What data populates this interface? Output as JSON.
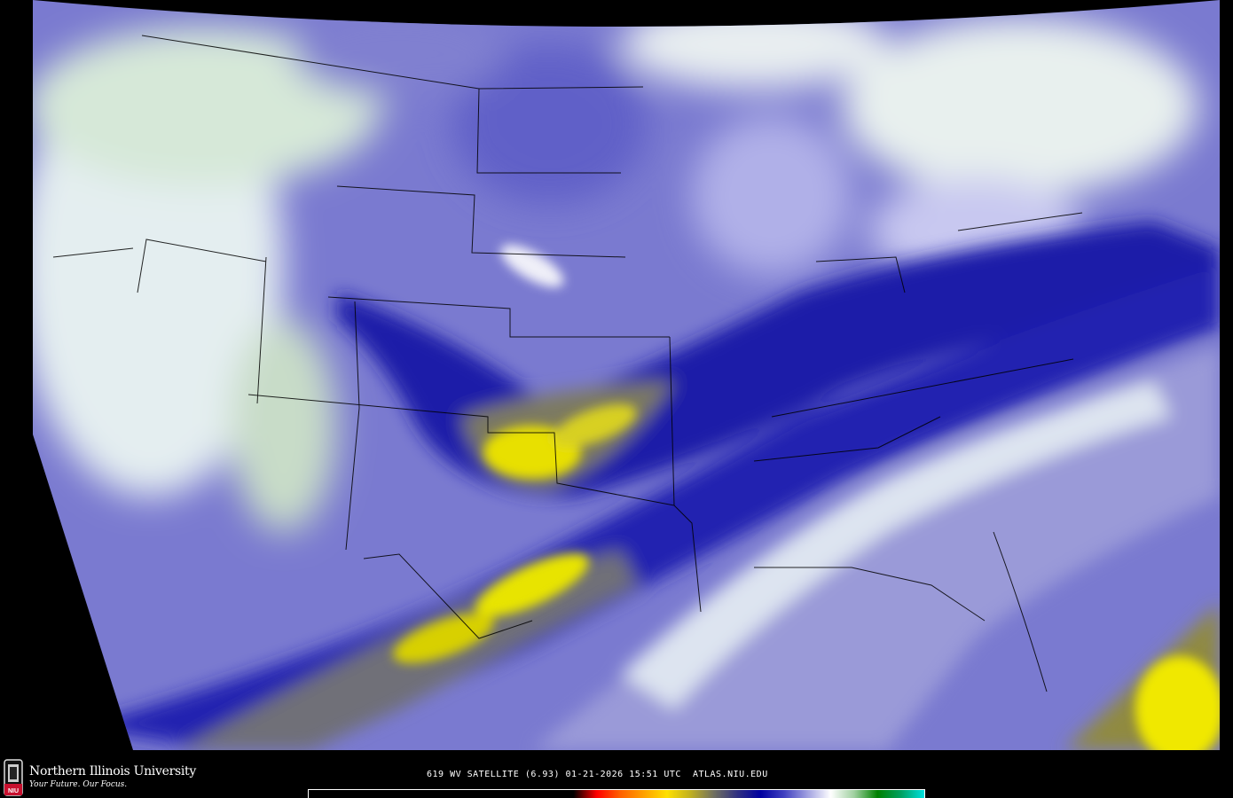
{
  "product": {
    "caption": "619 WV SATELLITE (6.93) 01-21-2026 15:51 UTC  ATLAS.NIU.EDU"
  },
  "branding": {
    "name": "Northern Illinois University",
    "tagline": "Your Future. Our Focus.",
    "logo_text": "NIU"
  },
  "map": {
    "region": "Continental United States",
    "imagery": "water vapor satellite",
    "background_color": "#000000",
    "border_color": "#000000"
  },
  "colorbar": {
    "stops": [
      "#000000",
      "#000000",
      "#ff0000",
      "#ff6000",
      "#ffa000",
      "#ffe000",
      "#c0b020",
      "#707060",
      "#303080",
      "#0000a0",
      "#4040c0",
      "#a0a0e0",
      "#ffffff",
      "#a0d0a0",
      "#008000",
      "#00a060",
      "#00e0e0"
    ]
  }
}
